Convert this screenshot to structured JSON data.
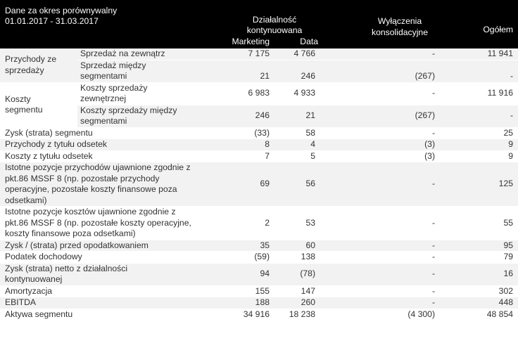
{
  "header": {
    "period_label": "Dane za okres porównywalny",
    "period_dates": "01.01.2017 - 31.03.2017",
    "group_cont": "Działalność kontynuowana",
    "col_marketing": "Marketing",
    "col_data": "Data",
    "col_wylaczenia": "Wyłączenia konsolidacyjne",
    "col_ogolem": "Ogółem"
  },
  "groups": {
    "przychody": {
      "label": "Przychody ze sprzedaży",
      "rows": [
        {
          "label": "Sprzedaż na zewnątrz",
          "marketing": "7 175",
          "data": "4 766",
          "wyl": "-",
          "ogolem": "11 941"
        },
        {
          "label": "Sprzedaż między segmentami",
          "marketing": "21",
          "data": "246",
          "wyl": "(267)",
          "ogolem": "-"
        }
      ]
    },
    "koszty": {
      "label": "Koszty segmentu",
      "rows": [
        {
          "label": "Koszty sprzedaży zewnętrznej",
          "marketing": "6 983",
          "data": "4 933",
          "wyl": "-",
          "ogolem": "11 916"
        },
        {
          "label": "Koszty sprzedaży między segmentami",
          "marketing": "246",
          "data": "21",
          "wyl": "(267)",
          "ogolem": "-"
        }
      ]
    }
  },
  "rows": [
    {
      "label": "Zysk (strata) segmentu",
      "marketing": "(33)",
      "data": "58",
      "wyl": "-",
      "ogolem": "25"
    },
    {
      "label": "Przychody z tytułu odsetek",
      "marketing": "8",
      "data": "4",
      "wyl": "(3)",
      "ogolem": "9"
    },
    {
      "label": "Koszty z tytułu odsetek",
      "marketing": "7",
      "data": "5",
      "wyl": "(3)",
      "ogolem": "9"
    },
    {
      "label": "Istotne pozycje przychodów ujawnione zgodnie z pkt.86 MSSF 8 (np. pozostałe przychody operacyjne, pozostałe koszty finansowe poza odsetkami)",
      "marketing": "69",
      "data": "56",
      "wyl": "-",
      "ogolem": "125"
    },
    {
      "label": "Istotne pozycje kosztów ujawnione zgodnie z pkt.86 MSSF 8 (np. pozostałe koszty operacyjne, koszty finansowe poza odsetkami)",
      "marketing": "2",
      "data": "53",
      "wyl": "-",
      "ogolem": "55"
    },
    {
      "label": "Zysk / (strata) przed opodatkowaniem",
      "marketing": "35",
      "data": "60",
      "wyl": "-",
      "ogolem": "95"
    },
    {
      "label": "Podatek dochodowy",
      "marketing": "(59)",
      "data": "138",
      "wyl": "-",
      "ogolem": "79"
    },
    {
      "label": "Zysk (strata) netto z działalności kontynuowanej",
      "marketing": "94",
      "data": "(78)",
      "wyl": "-",
      "ogolem": "16"
    },
    {
      "label": "Amortyzacja",
      "marketing": "155",
      "data": "147",
      "wyl": "-",
      "ogolem": "302"
    },
    {
      "label": "EBITDA",
      "marketing": "188",
      "data": "260",
      "wyl": "-",
      "ogolem": "448"
    },
    {
      "label": "Aktywa segmentu",
      "marketing": "34 916",
      "data": "18 238",
      "wyl": "(4 300)",
      "ogolem": "48 854"
    }
  ]
}
